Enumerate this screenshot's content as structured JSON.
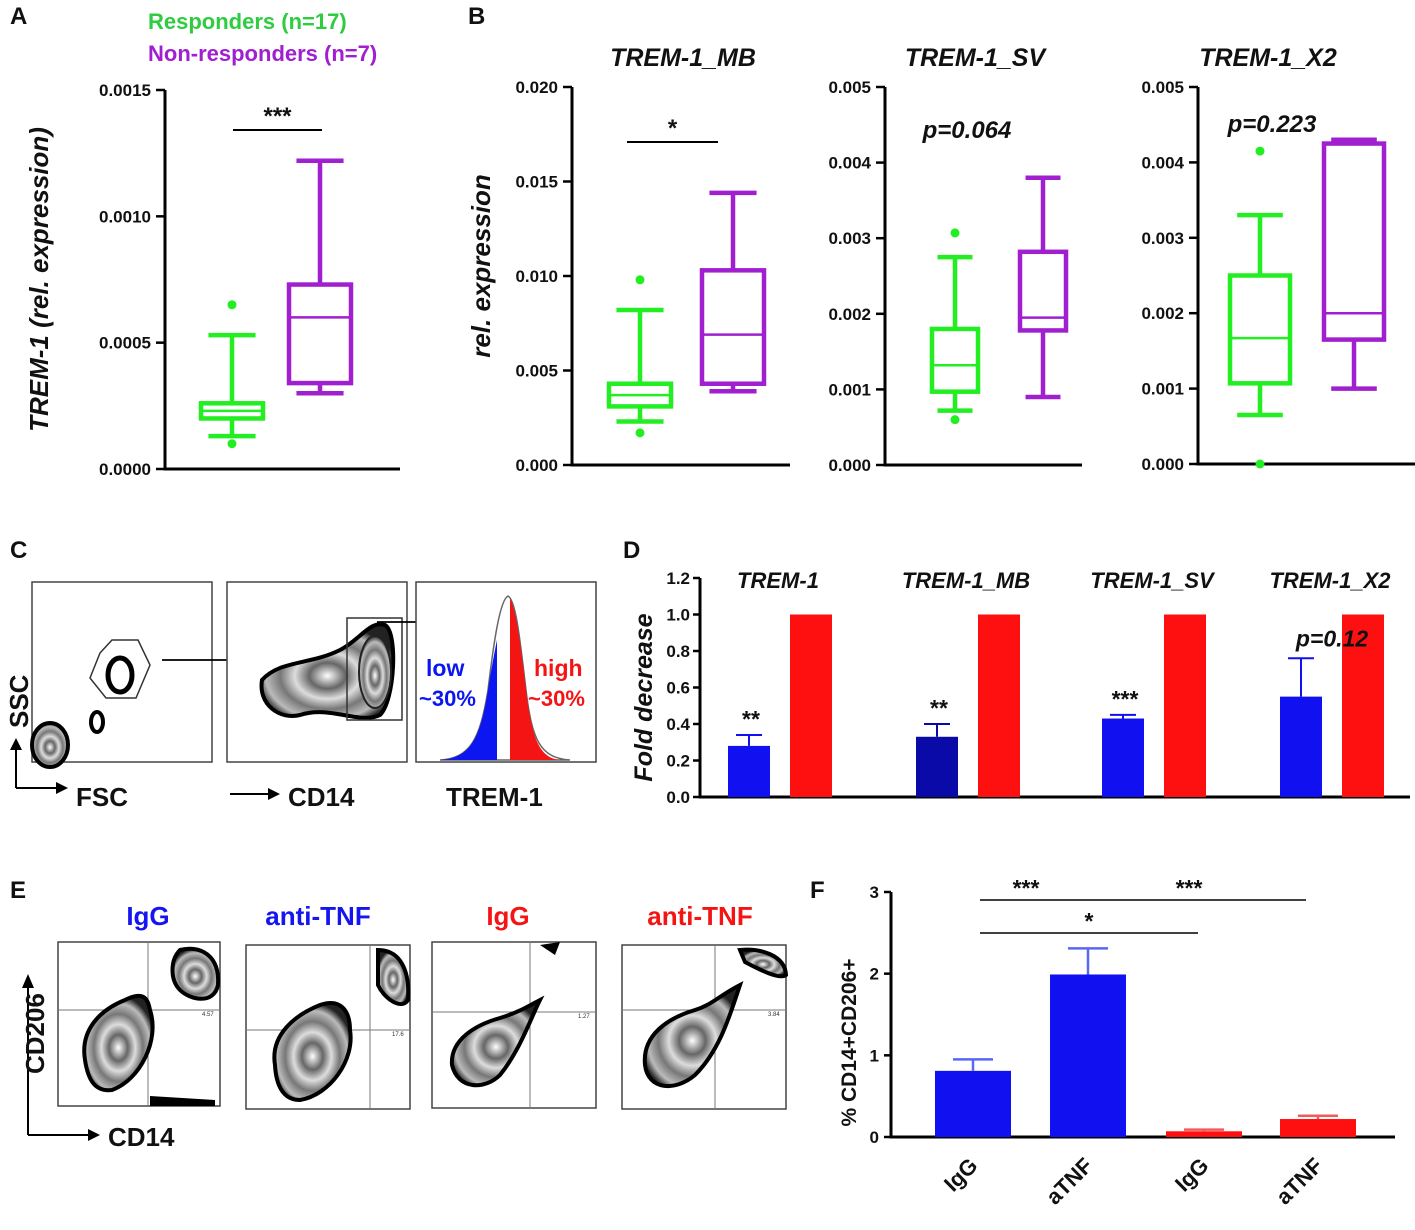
{
  "colors": {
    "responders": "#22ee22",
    "nonresponders": "#a020d0",
    "low": "#0b16f0",
    "high": "#f51414",
    "bar_blue": "#1010f0",
    "bar_dark": "#0a0aa8",
    "bar_red": "#ff1010"
  },
  "panels": {
    "A": "A",
    "B": "B",
    "C": "C",
    "D": "D",
    "E": "E",
    "F": "F"
  },
  "legend": {
    "responders": "Responders (n=17)",
    "nonresponders": "Non-responders  (n=7)"
  },
  "chart_data": [
    {
      "id": "A",
      "type": "box",
      "title": "",
      "ylabel": "TREM-1 (rel. expression)",
      "ylim": [
        0,
        0.0015
      ],
      "yticks": [
        "0.0000",
        "0.0005",
        "0.0010",
        "0.0015"
      ],
      "ytick_values": [
        0,
        0.0005,
        0.001,
        0.0015
      ],
      "significance": "***",
      "series": [
        {
          "name": "Responders (n=17)",
          "min": 0.00013,
          "q1": 0.0002,
          "median": 0.00023,
          "q3": 0.00026,
          "max": 0.00053,
          "outliers": [
            0.00065,
            0.0001
          ]
        },
        {
          "name": "Non-responders (n=7)",
          "min": 0.0003,
          "q1": 0.00034,
          "median": 0.0006,
          "q3": 0.00073,
          "max": 0.00122,
          "outliers": []
        }
      ]
    },
    {
      "id": "B1",
      "type": "box",
      "title": "TREM-1_MB",
      "ylabel": "rel. expression",
      "ylim": [
        0,
        0.02
      ],
      "yticks": [
        "0.000",
        "0.005",
        "0.010",
        "0.015",
        "0.020"
      ],
      "ytick_values": [
        0,
        0.005,
        0.01,
        0.015,
        0.02
      ],
      "significance": "*",
      "series": [
        {
          "name": "Responders",
          "min": 0.0023,
          "q1": 0.0031,
          "median": 0.0037,
          "q3": 0.0043,
          "max": 0.0082,
          "outliers": [
            0.0098,
            0.0017
          ]
        },
        {
          "name": "Non-responders",
          "min": 0.0039,
          "q1": 0.0043,
          "median": 0.0069,
          "q3": 0.0103,
          "max": 0.0144,
          "outliers": []
        }
      ]
    },
    {
      "id": "B2",
      "type": "box",
      "title": "TREM-1_SV",
      "ylabel": "",
      "ylim": [
        0,
        0.005
      ],
      "yticks": [
        "0.000",
        "0.001",
        "0.002",
        "0.003",
        "0.004",
        "0.005"
      ],
      "ytick_values": [
        0,
        0.001,
        0.002,
        0.003,
        0.004,
        0.005
      ],
      "significance": "p=0.064",
      "series": [
        {
          "name": "Responders",
          "min": 0.00072,
          "q1": 0.00097,
          "median": 0.00132,
          "q3": 0.0018,
          "max": 0.00275,
          "outliers": [
            0.00307,
            0.0006
          ]
        },
        {
          "name": "Non-responders",
          "min": 0.0009,
          "q1": 0.00178,
          "median": 0.00195,
          "q3": 0.00282,
          "max": 0.0038,
          "outliers": []
        }
      ]
    },
    {
      "id": "B3",
      "type": "box",
      "title": "TREM-1_X2",
      "ylabel": "",
      "ylim": [
        0,
        0.005
      ],
      "yticks": [
        "0.000",
        "0.001",
        "0.002",
        "0.003",
        "0.004",
        "0.005"
      ],
      "ytick_values": [
        0,
        0.001,
        0.002,
        0.003,
        0.004,
        0.005
      ],
      "significance": "p=0.223",
      "series": [
        {
          "name": "Responders",
          "min": 0.00065,
          "q1": 0.00107,
          "median": 0.00167,
          "q3": 0.0025,
          "max": 0.0033,
          "outliers": [
            0.00415,
            0.0
          ]
        },
        {
          "name": "Non-responders",
          "min": 0.001,
          "q1": 0.00165,
          "median": 0.002,
          "q3": 0.00425,
          "max": 0.0043,
          "outliers": []
        }
      ]
    },
    {
      "id": "D",
      "type": "bar",
      "ylabel": "Fold decrease",
      "ylim": [
        0,
        1.2
      ],
      "yticks": [
        "0.0",
        "0.2",
        "0.4",
        "0.6",
        "0.8",
        "1.0",
        "1.2"
      ],
      "ytick_values": [
        0,
        0.2,
        0.4,
        0.6,
        0.8,
        1.0,
        1.2
      ],
      "groups": [
        {
          "label": "TREM-1",
          "low": 0.28,
          "low_err": 0.06,
          "high": 1.0,
          "sig": "**"
        },
        {
          "label": "TREM-1_MB",
          "low": 0.33,
          "low_err": 0.07,
          "high": 1.0,
          "sig": "**"
        },
        {
          "label": "TREM-1_SV",
          "low": 0.43,
          "low_err": 0.02,
          "high": 1.0,
          "sig": "***"
        },
        {
          "label": "TREM-1_X2",
          "low": 0.55,
          "low_err": 0.21,
          "high": 1.0,
          "sig": "p=0.12"
        }
      ]
    },
    {
      "id": "F",
      "type": "bar",
      "ylabel": "% CD14+CD206+",
      "ylim": [
        0,
        3
      ],
      "yticks": [
        "0",
        "1",
        "2",
        "3"
      ],
      "ytick_values": [
        0,
        1,
        2,
        3
      ],
      "categories": [
        "IgG",
        "aTNF",
        "IgG",
        "aTNF"
      ],
      "values": [
        0.81,
        1.99,
        0.07,
        0.22
      ],
      "errors": [
        0.14,
        0.32,
        0.02,
        0.04
      ],
      "significance": [
        {
          "from": 0,
          "to": 1,
          "label": "***"
        },
        {
          "from": 0,
          "to": 2,
          "label": "*"
        },
        {
          "from": 1,
          "to": 3,
          "label": "***"
        }
      ]
    }
  ],
  "flow_C": {
    "ylabel": "SSC",
    "xlabel1": "FSC",
    "xlabel2": "CD14",
    "xlabel3": "TREM-1",
    "low_label": "low",
    "low_pct": "~30%",
    "high_label": "high",
    "high_pct": "~30%"
  },
  "flow_E": {
    "ylabel": "CD206",
    "xlabel": "CD14",
    "titles": [
      "IgG",
      "anti-TNF",
      "IgG",
      "anti-TNF"
    ],
    "quadrant_values": [
      "4.57",
      "17.6",
      "1.27",
      "3.84"
    ]
  }
}
